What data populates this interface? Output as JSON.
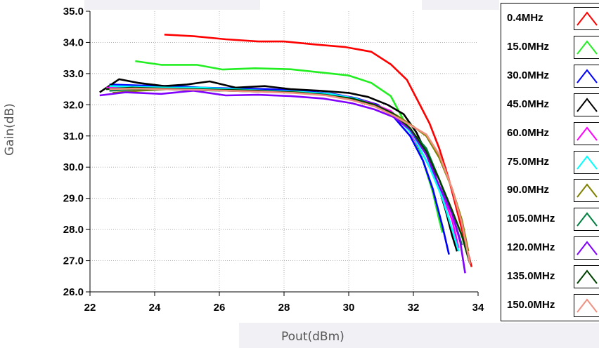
{
  "chart_data": {
    "type": "line",
    "title": "",
    "xlabel": "Pout(dBm)",
    "ylabel": "Gain(dB)",
    "xlim": [
      22,
      34
    ],
    "ylim": [
      26.0,
      35.0
    ],
    "x_ticks": [
      "22",
      "24",
      "26",
      "28",
      "30",
      "32",
      "34"
    ],
    "y_ticks": [
      "26.0",
      "27.0",
      "28.0",
      "29.0",
      "30.0",
      "31.0",
      "32.0",
      "33.0",
      "34.0",
      "35.0"
    ],
    "grid": true,
    "legend_position": "right",
    "series": [
      {
        "name": "0.4MHz",
        "color": "#ff0000",
        "points": [
          [
            24.3,
            34.25
          ],
          [
            25.2,
            34.2
          ],
          [
            26.2,
            34.1
          ],
          [
            27.2,
            34.03
          ],
          [
            28.0,
            34.03
          ],
          [
            29.0,
            33.93
          ],
          [
            29.9,
            33.85
          ],
          [
            30.7,
            33.7
          ],
          [
            31.3,
            33.3
          ],
          [
            31.8,
            32.8
          ],
          [
            32.1,
            32.2
          ],
          [
            32.5,
            31.4
          ],
          [
            32.8,
            30.6
          ],
          [
            33.1,
            29.6
          ],
          [
            33.35,
            28.6
          ],
          [
            33.6,
            27.6
          ],
          [
            33.8,
            26.8
          ]
        ]
      },
      {
        "name": "15.0MHz",
        "color": "#22ee22",
        "points": [
          [
            23.4,
            33.4
          ],
          [
            24.2,
            33.28
          ],
          [
            25.3,
            33.28
          ],
          [
            26.1,
            33.13
          ],
          [
            27.1,
            33.17
          ],
          [
            28.2,
            33.14
          ],
          [
            29.2,
            33.03
          ],
          [
            30.0,
            32.94
          ],
          [
            30.7,
            32.7
          ],
          [
            31.3,
            32.28
          ],
          [
            31.7,
            31.5
          ],
          [
            32.0,
            31.0
          ],
          [
            32.3,
            30.2
          ],
          [
            32.6,
            29.2
          ],
          [
            32.8,
            28.3
          ],
          [
            32.9,
            27.9
          ]
        ]
      },
      {
        "name": "30.0MHz",
        "color": "#0000ff",
        "points": [
          [
            22.6,
            32.65
          ],
          [
            23.5,
            32.62
          ],
          [
            24.5,
            32.6
          ],
          [
            25.5,
            32.55
          ],
          [
            26.5,
            32.52
          ],
          [
            27.5,
            32.5
          ],
          [
            28.5,
            32.45
          ],
          [
            29.5,
            32.35
          ],
          [
            30.2,
            32.22
          ],
          [
            30.9,
            32.0
          ],
          [
            31.4,
            31.6
          ],
          [
            31.9,
            31.0
          ],
          [
            32.3,
            30.2
          ],
          [
            32.6,
            29.3
          ],
          [
            32.9,
            28.1
          ],
          [
            33.1,
            27.2
          ]
        ]
      },
      {
        "name": "45.0MHz",
        "color": "#000000",
        "points": [
          [
            22.3,
            32.4
          ],
          [
            22.9,
            32.82
          ],
          [
            23.5,
            32.7
          ],
          [
            24.3,
            32.6
          ],
          [
            25.0,
            32.65
          ],
          [
            25.7,
            32.75
          ],
          [
            26.5,
            32.55
          ],
          [
            27.4,
            32.6
          ],
          [
            28.2,
            32.5
          ],
          [
            29.1,
            32.45
          ],
          [
            30.0,
            32.38
          ],
          [
            30.6,
            32.25
          ],
          [
            31.2,
            32.0
          ],
          [
            31.7,
            31.7
          ],
          [
            32.1,
            31.1
          ],
          [
            32.6,
            30.0
          ],
          [
            33.0,
            28.6
          ],
          [
            33.2,
            27.8
          ],
          [
            33.35,
            27.3
          ]
        ]
      },
      {
        "name": "60.0MHz",
        "color": "#ff00ff",
        "points": [
          [
            22.5,
            32.55
          ],
          [
            23.3,
            32.55
          ],
          [
            24.2,
            32.5
          ],
          [
            25.3,
            32.5
          ],
          [
            26.3,
            32.45
          ],
          [
            27.3,
            32.42
          ],
          [
            28.3,
            32.4
          ],
          [
            29.3,
            32.35
          ],
          [
            30.0,
            32.25
          ],
          [
            30.7,
            32.05
          ],
          [
            31.3,
            31.8
          ],
          [
            31.8,
            31.3
          ],
          [
            32.3,
            30.4
          ],
          [
            32.8,
            29.4
          ],
          [
            33.2,
            28.3
          ],
          [
            33.4,
            27.4
          ]
        ]
      },
      {
        "name": "75.0MHz",
        "color": "#00ffff",
        "points": [
          [
            22.6,
            32.6
          ],
          [
            23.4,
            32.58
          ],
          [
            24.4,
            32.55
          ],
          [
            25.4,
            32.55
          ],
          [
            26.4,
            32.5
          ],
          [
            27.4,
            32.45
          ],
          [
            28.4,
            32.42
          ],
          [
            29.4,
            32.35
          ],
          [
            30.2,
            32.2
          ],
          [
            30.9,
            31.95
          ],
          [
            31.5,
            31.6
          ],
          [
            32.0,
            31.0
          ],
          [
            32.5,
            30.0
          ],
          [
            32.9,
            29.0
          ],
          [
            33.2,
            28.0
          ],
          [
            33.4,
            27.3
          ]
        ]
      },
      {
        "name": "90.0MHz",
        "color": "#808000",
        "points": [
          [
            22.7,
            32.38
          ],
          [
            23.5,
            32.45
          ],
          [
            24.4,
            32.5
          ],
          [
            25.4,
            32.47
          ],
          [
            26.4,
            32.45
          ],
          [
            27.4,
            32.42
          ],
          [
            28.4,
            32.4
          ],
          [
            29.4,
            32.3
          ],
          [
            30.2,
            32.15
          ],
          [
            30.9,
            31.95
          ],
          [
            31.5,
            31.65
          ],
          [
            32.0,
            31.3
          ],
          [
            32.4,
            31.0
          ],
          [
            32.8,
            30.3
          ],
          [
            33.2,
            29.3
          ],
          [
            33.5,
            28.3
          ],
          [
            33.7,
            27.3
          ]
        ]
      },
      {
        "name": "105.0MHz",
        "color": "#008040",
        "points": [
          [
            22.6,
            32.45
          ],
          [
            23.4,
            32.5
          ],
          [
            24.3,
            32.5
          ],
          [
            25.3,
            32.47
          ],
          [
            26.3,
            32.45
          ],
          [
            27.3,
            32.42
          ],
          [
            28.3,
            32.4
          ],
          [
            29.3,
            32.32
          ],
          [
            30.1,
            32.18
          ],
          [
            30.8,
            31.97
          ],
          [
            31.4,
            31.7
          ],
          [
            31.9,
            31.2
          ],
          [
            32.4,
            30.6
          ],
          [
            32.8,
            29.6
          ],
          [
            33.2,
            28.5
          ],
          [
            33.5,
            27.5
          ]
        ]
      },
      {
        "name": "120.0MHz",
        "color": "#8000ff",
        "points": [
          [
            22.3,
            32.3
          ],
          [
            23.1,
            32.4
          ],
          [
            24.2,
            32.35
          ],
          [
            25.2,
            32.45
          ],
          [
            26.2,
            32.3
          ],
          [
            27.2,
            32.32
          ],
          [
            28.2,
            32.28
          ],
          [
            29.2,
            32.2
          ],
          [
            30.1,
            32.05
          ],
          [
            30.8,
            31.85
          ],
          [
            31.4,
            31.6
          ],
          [
            31.9,
            31.2
          ],
          [
            32.4,
            30.4
          ],
          [
            32.8,
            29.4
          ],
          [
            33.2,
            28.5
          ],
          [
            33.45,
            27.6
          ],
          [
            33.6,
            26.6
          ]
        ]
      },
      {
        "name": "135.0MHz",
        "color": "#004000",
        "points": [
          [
            22.5,
            32.5
          ],
          [
            23.3,
            32.55
          ],
          [
            24.2,
            32.52
          ],
          [
            25.2,
            32.5
          ],
          [
            26.2,
            32.48
          ],
          [
            27.2,
            32.45
          ],
          [
            28.2,
            32.4
          ],
          [
            29.2,
            32.32
          ],
          [
            30.1,
            32.2
          ],
          [
            30.8,
            32.0
          ],
          [
            31.4,
            31.7
          ],
          [
            31.9,
            31.25
          ],
          [
            32.4,
            30.5
          ],
          [
            32.8,
            29.6
          ],
          [
            33.2,
            28.6
          ],
          [
            33.5,
            27.8
          ],
          [
            33.75,
            26.9
          ]
        ]
      },
      {
        "name": "150.0MHz",
        "color": "#f09080",
        "points": [
          [
            22.6,
            32.5
          ],
          [
            23.4,
            32.52
          ],
          [
            24.3,
            32.5
          ],
          [
            25.3,
            32.48
          ],
          [
            26.3,
            32.45
          ],
          [
            27.3,
            32.42
          ],
          [
            28.3,
            32.38
          ],
          [
            29.3,
            32.3
          ],
          [
            30.1,
            32.15
          ],
          [
            30.8,
            31.95
          ],
          [
            31.4,
            31.65
          ],
          [
            31.9,
            31.35
          ],
          [
            32.4,
            31.05
          ],
          [
            32.8,
            30.4
          ],
          [
            33.2,
            29.3
          ],
          [
            33.5,
            28.2
          ],
          [
            33.75,
            26.9
          ]
        ]
      }
    ]
  }
}
